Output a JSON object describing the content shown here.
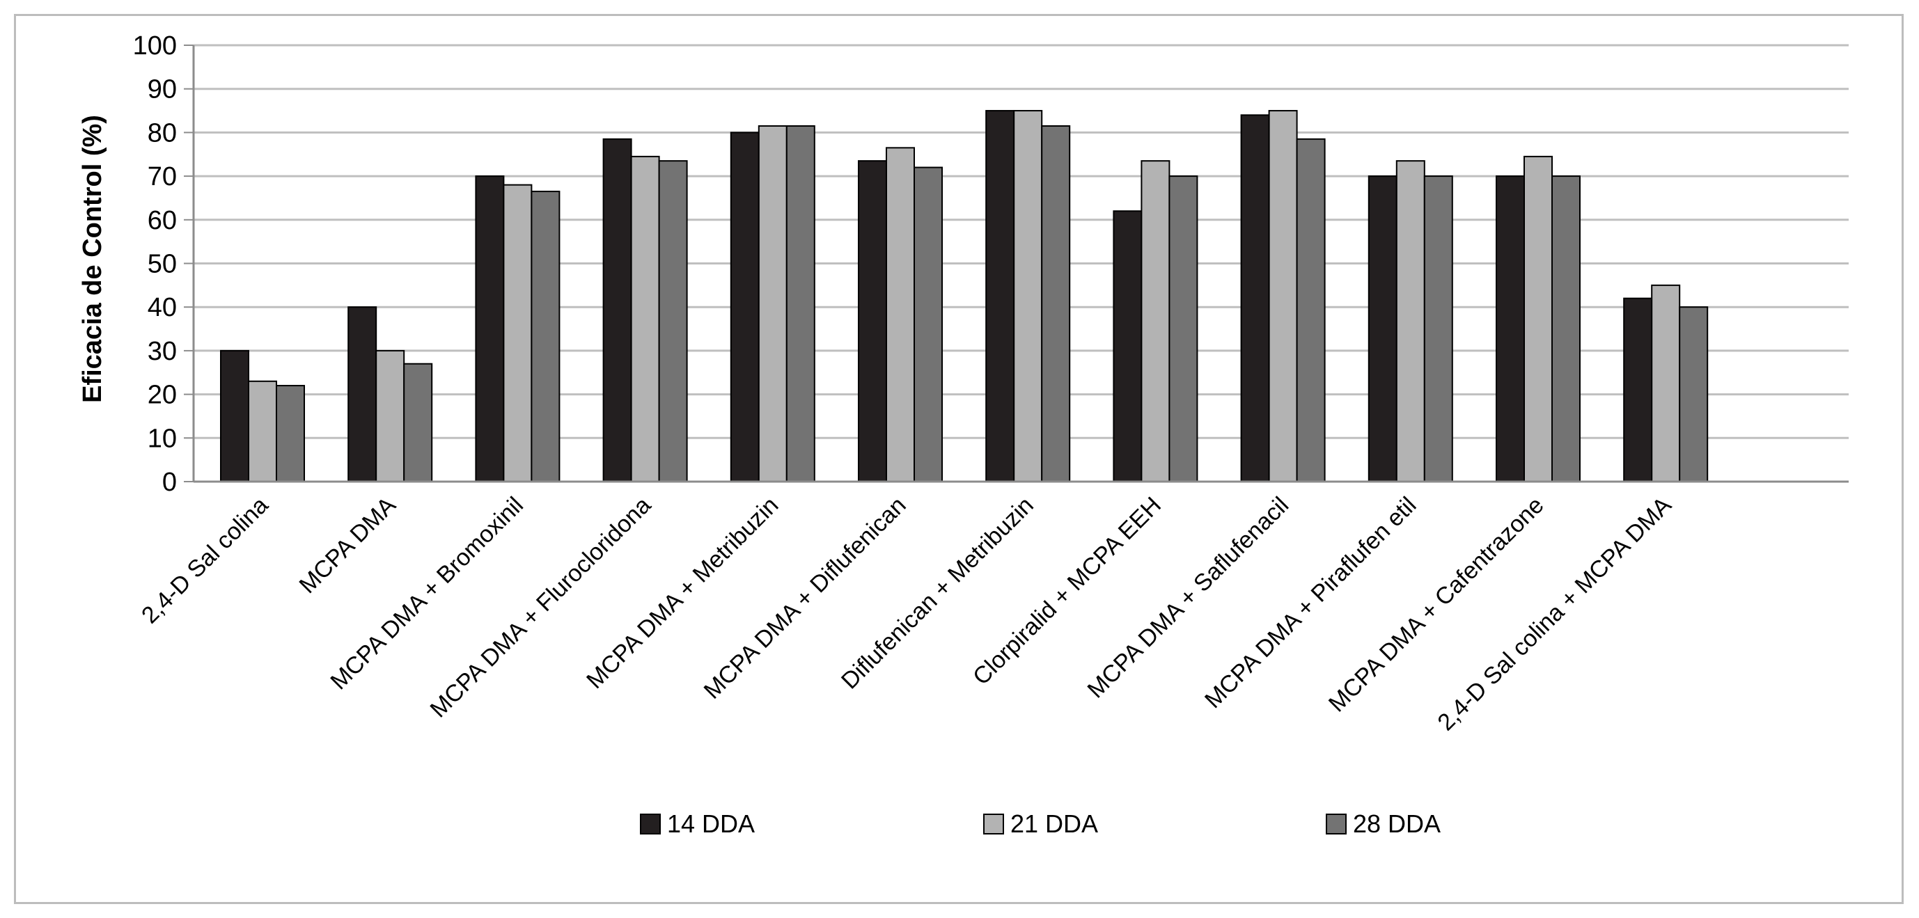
{
  "chart_data": {
    "type": "bar",
    "title": "",
    "xlabel": "",
    "ylabel": "Eficacia de Control (%)",
    "ylim": [
      0,
      100
    ],
    "yticks": [
      0,
      10,
      20,
      30,
      40,
      50,
      60,
      70,
      80,
      90,
      100
    ],
    "grid": true,
    "legend_position": "bottom",
    "categories": [
      "2,4-D Sal colina",
      "MCPA DMA",
      "MCPA DMA + Bromoxinil",
      "MCPA DMA + Flurocloridona",
      "MCPA DMA + Metribuzin",
      "MCPA DMA + Diflufenican",
      "Diflufenican  + Metribuzin",
      "Clorpiralid + MCPA EEH",
      "MCPA DMA + Saflufenacil",
      "MCPA DMA + Piraflufen etil",
      "MCPA DMA + Cafentrazone",
      "2,4-D Sal colina + MCPA DMA"
    ],
    "series": [
      {
        "name": "14 DDA",
        "color": "#231f20",
        "values": [
          30,
          40,
          70,
          78.5,
          80,
          73.5,
          85,
          62,
          84,
          70,
          70,
          42
        ]
      },
      {
        "name": "21 DDA",
        "color": "#b3b3b3",
        "values": [
          23,
          30,
          68,
          74.5,
          81.5,
          76.5,
          85,
          73.5,
          85,
          73.5,
          74.5,
          45
        ]
      },
      {
        "name": "28 DDA",
        "color": "#737373",
        "values": [
          22,
          27,
          66.5,
          73.5,
          81.5,
          72,
          81.5,
          70,
          78.5,
          70,
          70,
          40
        ]
      }
    ]
  }
}
